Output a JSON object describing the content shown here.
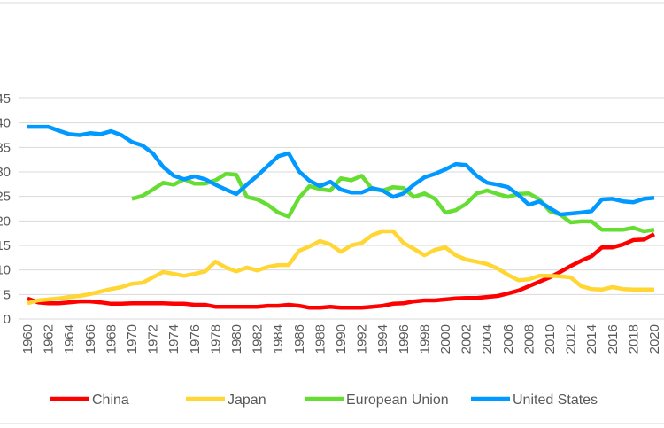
{
  "chart_data": {
    "type": "line",
    "title": "",
    "xlabel": "",
    "ylabel": "",
    "ylim": [
      0,
      45
    ],
    "yticks": [
      "0",
      "5",
      "10",
      "15",
      "20",
      "25",
      "30",
      "35",
      "40",
      "45"
    ],
    "x": [
      1960,
      1961,
      1962,
      1963,
      1964,
      1965,
      1966,
      1967,
      1968,
      1969,
      1970,
      1971,
      1972,
      1973,
      1974,
      1975,
      1976,
      1977,
      1978,
      1979,
      1980,
      1981,
      1982,
      1983,
      1984,
      1985,
      1986,
      1987,
      1988,
      1989,
      1990,
      1991,
      1992,
      1993,
      1994,
      1995,
      1996,
      1997,
      1998,
      1999,
      2000,
      2001,
      2002,
      2003,
      2004,
      2005,
      2006,
      2007,
      2008,
      2009,
      2010,
      2011,
      2012,
      2013,
      2014,
      2015,
      2016,
      2017,
      2018,
      2019,
      2020
    ],
    "xtick_labels": [
      "1960",
      "1962",
      "1964",
      "1966",
      "1968",
      "1970",
      "1972",
      "1974",
      "1976",
      "1978",
      "1980",
      "1982",
      "1984",
      "1986",
      "1988",
      "1990",
      "1992",
      "1994",
      "1996",
      "1998",
      "2000",
      "2002",
      "2004",
      "2006",
      "2008",
      "2010",
      "2012",
      "2014",
      "2016",
      "2018",
      "2020"
    ],
    "grid": true,
    "legend_placement": "bottom",
    "series": [
      {
        "name": "China",
        "color": "#ff0000",
        "values": [
          4.2,
          3.4,
          3.2,
          3.2,
          3.4,
          3.6,
          3.6,
          3.4,
          3.1,
          3.1,
          3.2,
          3.2,
          3.2,
          3.2,
          3.1,
          3.1,
          2.9,
          2.9,
          2.5,
          2.5,
          2.5,
          2.5,
          2.5,
          2.7,
          2.7,
          2.9,
          2.7,
          2.3,
          2.3,
          2.5,
          2.3,
          2.3,
          2.3,
          2.5,
          2.7,
          3.1,
          3.2,
          3.6,
          3.8,
          3.8,
          4.0,
          4.2,
          4.3,
          4.3,
          4.5,
          4.7,
          5.2,
          5.8,
          6.7,
          7.6,
          8.5,
          9.6,
          10.8,
          11.9,
          12.8,
          14.6,
          14.6,
          15.2,
          16.1,
          16.2,
          17.3
        ]
      },
      {
        "name": "Japan",
        "color": "#ffd633",
        "values": [
          3.2,
          3.8,
          4.0,
          4.2,
          4.5,
          4.7,
          5.1,
          5.6,
          6.1,
          6.5,
          7.2,
          7.4,
          8.5,
          9.6,
          9.2,
          8.8,
          9.2,
          9.7,
          11.7,
          10.5,
          9.7,
          10.5,
          9.9,
          10.6,
          11.0,
          11.0,
          13.9,
          14.8,
          15.9,
          15.2,
          13.7,
          15.0,
          15.5,
          17.1,
          17.9,
          17.9,
          15.5,
          14.3,
          13.0,
          14.1,
          14.6,
          13.0,
          12.1,
          11.7,
          11.2,
          10.3,
          9.0,
          7.9,
          8.1,
          8.8,
          8.8,
          8.7,
          8.5,
          6.7,
          6.1,
          6.0,
          6.5,
          6.1,
          6.0,
          6.0,
          6.0
        ]
      },
      {
        "name": "European Union",
        "color": "#66dd33",
        "values": [
          null,
          null,
          null,
          null,
          null,
          null,
          null,
          null,
          null,
          null,
          24.5,
          25.1,
          26.4,
          27.8,
          27.4,
          28.5,
          27.6,
          27.6,
          28.3,
          29.6,
          29.4,
          24.9,
          24.4,
          23.3,
          21.7,
          20.9,
          24.7,
          27.1,
          26.5,
          26.2,
          28.7,
          28.3,
          29.2,
          26.5,
          26.2,
          26.9,
          26.7,
          24.9,
          25.6,
          24.5,
          21.7,
          22.2,
          23.5,
          25.6,
          26.2,
          25.5,
          24.9,
          25.5,
          25.6,
          24.4,
          22.0,
          21.3,
          19.7,
          19.9,
          19.9,
          18.2,
          18.2,
          18.2,
          18.6,
          17.9,
          18.2
        ]
      },
      {
        "name": "United States",
        "color": "#0099ff",
        "values": [
          39.2,
          39.2,
          39.2,
          38.4,
          37.7,
          37.5,
          37.9,
          37.7,
          38.3,
          37.5,
          36.1,
          35.4,
          33.8,
          31.0,
          29.2,
          28.5,
          29.1,
          28.5,
          27.4,
          26.4,
          25.5,
          27.4,
          29.2,
          31.2,
          33.2,
          33.8,
          30.1,
          28.2,
          27.1,
          28.0,
          26.4,
          25.8,
          25.8,
          26.7,
          26.2,
          24.9,
          25.6,
          27.4,
          28.9,
          29.6,
          30.5,
          31.6,
          31.4,
          29.2,
          27.8,
          27.4,
          26.9,
          25.3,
          23.3,
          24.0,
          22.6,
          21.3,
          21.5,
          21.7,
          22.0,
          24.4,
          24.5,
          24.0,
          23.8,
          24.5,
          24.7
        ]
      }
    ]
  }
}
